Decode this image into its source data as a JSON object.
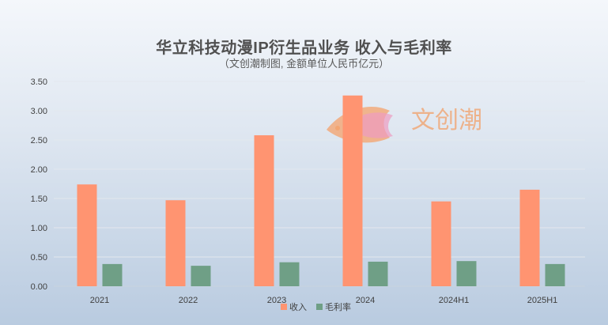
{
  "chart_data": {
    "type": "bar",
    "title": "华立科技动漫IP衍生品业务 收入与毛利率",
    "subtitle": "（文创潮制图, 金额单位人民币亿元）",
    "categories": [
      "2021",
      "2022",
      "2023",
      "2024",
      "2024H1",
      "2025H1"
    ],
    "series": [
      {
        "name": "收入",
        "values": [
          1.74,
          1.47,
          2.58,
          3.26,
          1.45,
          1.65
        ],
        "color": "#ff9471"
      },
      {
        "name": "毛利率",
        "values": [
          0.38,
          0.35,
          0.41,
          0.42,
          0.43,
          0.38
        ],
        "color": "#6f9f86"
      }
    ],
    "ylim": [
      0,
      3.5
    ],
    "yticks": [
      "0.00",
      "0.50",
      "1.00",
      "1.50",
      "2.00",
      "2.50",
      "3.00",
      "3.50"
    ],
    "ytick_values": [
      0,
      0.5,
      1.0,
      1.5,
      2.0,
      2.5,
      3.0,
      3.5
    ],
    "grid": true,
    "legend": "bottom"
  },
  "watermark": {
    "text": "文创潮",
    "icon": "fish-logo-icon"
  }
}
